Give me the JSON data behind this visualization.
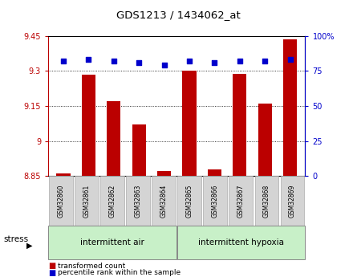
{
  "title": "GDS1213 / 1434062_at",
  "samples": [
    "GSM32860",
    "GSM32861",
    "GSM32862",
    "GSM32863",
    "GSM32864",
    "GSM32865",
    "GSM32866",
    "GSM32867",
    "GSM32868",
    "GSM32869"
  ],
  "red_values": [
    8.862,
    9.285,
    9.17,
    9.07,
    8.872,
    9.302,
    8.878,
    9.286,
    9.16,
    9.435
  ],
  "blue_values": [
    82,
    83,
    82,
    81,
    79,
    82,
    81,
    82,
    82,
    83
  ],
  "ylim_left": [
    8.85,
    9.45
  ],
  "ylim_right": [
    0,
    100
  ],
  "yticks_left": [
    8.85,
    9.0,
    9.15,
    9.3,
    9.45
  ],
  "yticks_right": [
    0,
    25,
    50,
    75,
    100
  ],
  "ytick_labels_left": [
    "8.85",
    "9",
    "9.15",
    "9.3",
    "9.45"
  ],
  "ytick_labels_right": [
    "0",
    "25",
    "50",
    "75",
    "100%"
  ],
  "group1_label": "intermittent air",
  "group2_label": "intermittent hypoxia",
  "stress_label": "stress",
  "legend_red": "transformed count",
  "legend_blue": "percentile rank within the sample",
  "red_color": "#bb0000",
  "blue_color": "#0000cc",
  "bar_width": 0.55,
  "background_color": "#ffffff",
  "plot_bg_color": "#ffffff",
  "group_bg_color": "#c8f0c8",
  "tick_label_bg": "#d4d4d4",
  "grid_color": "#000000",
  "n_group1": 5,
  "n_group2": 5
}
